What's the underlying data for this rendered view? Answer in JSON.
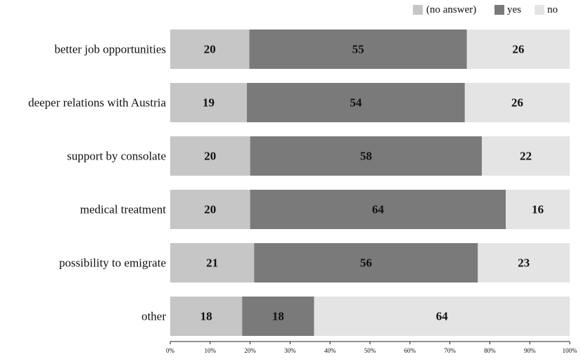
{
  "chart_data": {
    "type": "bar",
    "orientation": "horizontal",
    "stacked": true,
    "normalized_percent": true,
    "categories": [
      "better job opportunities",
      "deeper relations with Austria",
      "support by consolate",
      "medical treatment",
      "possibility to emigrate",
      "other"
    ],
    "series": [
      {
        "name": "(no answer)",
        "color": "#c6c6c6",
        "values": [
          20,
          19,
          20,
          20,
          21,
          18
        ]
      },
      {
        "name": "yes",
        "color": "#7a7a7a",
        "values": [
          55,
          54,
          58,
          64,
          56,
          18
        ]
      },
      {
        "name": "no",
        "color": "#e4e4e4",
        "values": [
          26,
          26,
          22,
          16,
          23,
          64
        ]
      }
    ],
    "xticks": [
      "0%",
      "10%",
      "20%",
      "30%",
      "40%",
      "50%",
      "60%",
      "70%",
      "80%",
      "90%",
      "100%"
    ],
    "xlim": [
      0,
      100
    ],
    "legend_position": "top-right",
    "grid": false
  }
}
